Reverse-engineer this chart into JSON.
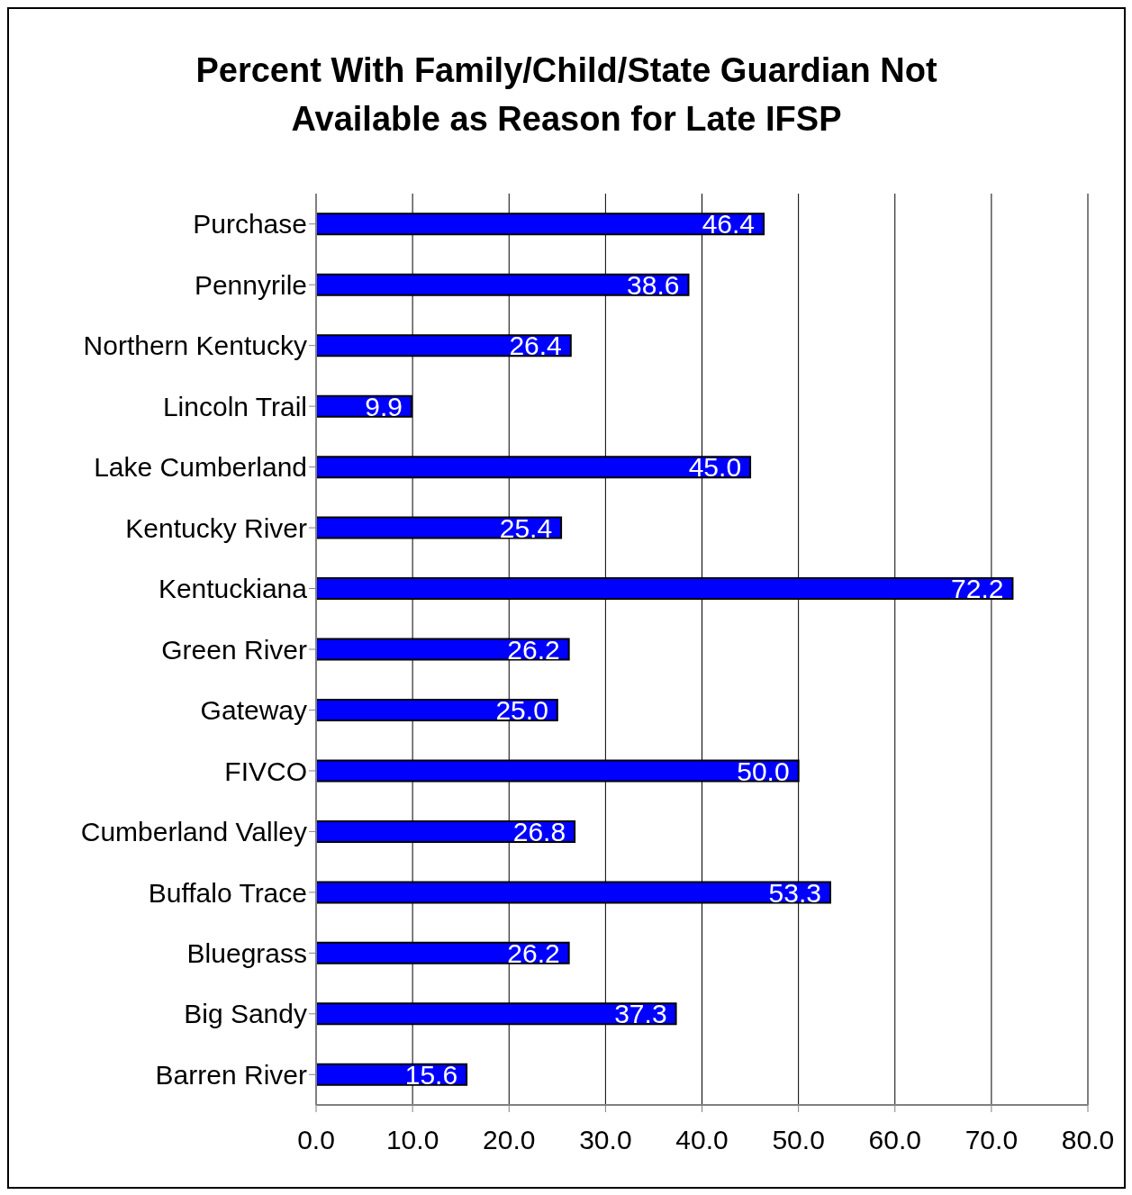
{
  "chart_data": {
    "type": "bar",
    "orientation": "horizontal",
    "title": "Percent With Family/Child/State Guardian Not Available as Reason for Late IFSP",
    "categories": [
      "Purchase",
      "Pennyrile",
      "Northern Kentucky",
      "Lincoln Trail",
      "Lake Cumberland",
      "Kentucky River",
      "Kentuckiana",
      "Green River",
      "Gateway",
      "FIVCO",
      "Cumberland Valley",
      "Buffalo Trace",
      "Bluegrass",
      "Big Sandy",
      "Barren River"
    ],
    "values": [
      46.4,
      38.6,
      26.4,
      9.9,
      45.0,
      25.4,
      72.2,
      26.2,
      25.0,
      50.0,
      26.8,
      53.3,
      26.2,
      37.3,
      15.6
    ],
    "value_labels": [
      "46.4",
      "38.6",
      "26.4",
      "9.9",
      "45.0",
      "25.4",
      "72.2",
      "26.2",
      "25.0",
      "50.0",
      "26.8",
      "53.3",
      "26.2",
      "37.3",
      "15.6"
    ],
    "color": "#0000ff",
    "xlim": [
      0,
      80
    ],
    "xticks": [
      {
        "value": 0,
        "label": "0.0"
      },
      {
        "value": 10,
        "label": "10.0"
      },
      {
        "value": 20,
        "label": "20.0"
      },
      {
        "value": 30,
        "label": "30.0"
      },
      {
        "value": 40,
        "label": "40.0"
      },
      {
        "value": 50,
        "label": "50.0"
      },
      {
        "value": 60,
        "label": "60.0"
      },
      {
        "value": 70,
        "label": "70.0"
      },
      {
        "value": 80,
        "label": "80.0"
      }
    ],
    "grid": "x"
  }
}
